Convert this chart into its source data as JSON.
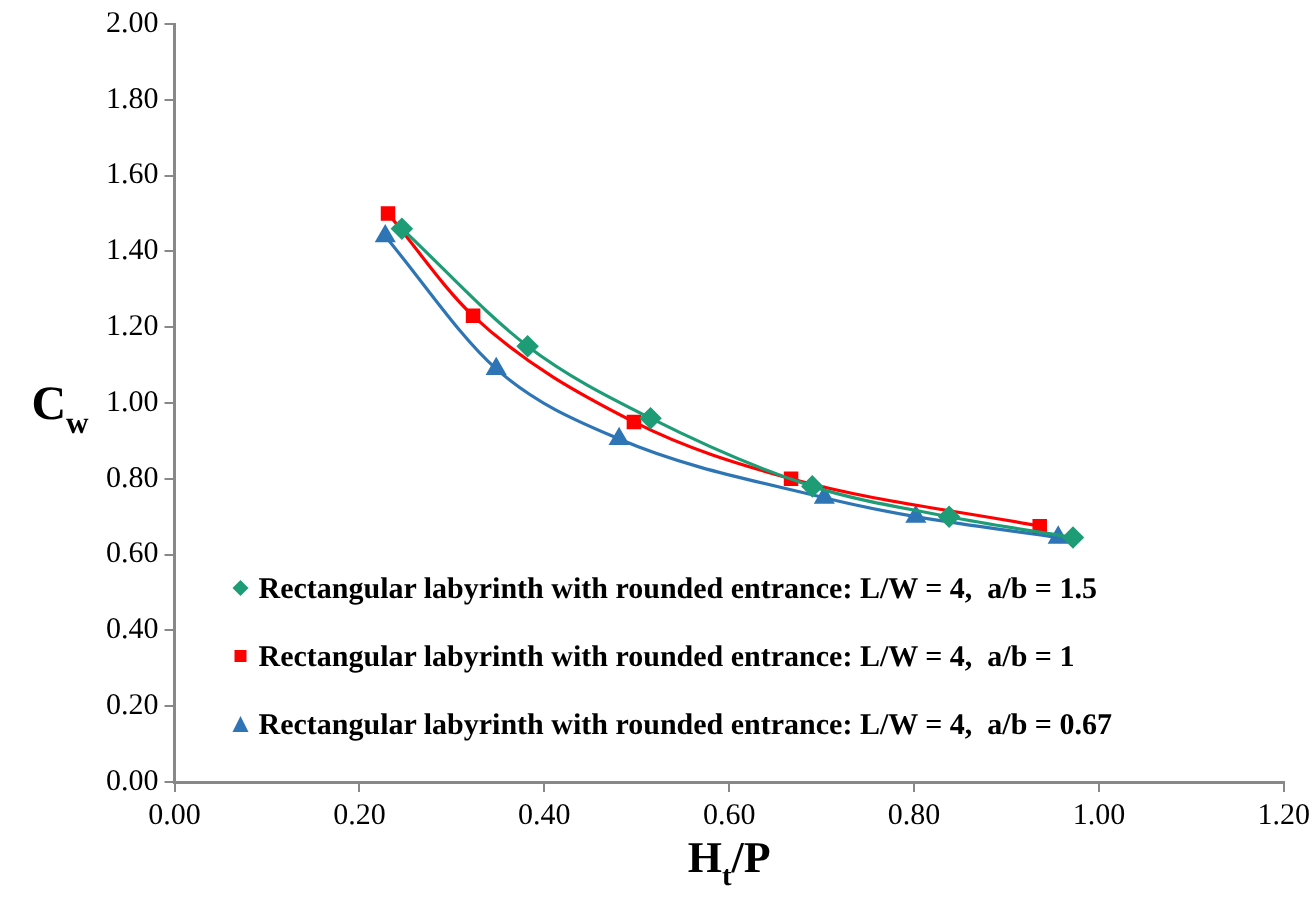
{
  "chart_data": {
    "type": "line",
    "xlabel": "H$_{t}$/P",
    "ylabel": "C$_{w}$",
    "xlim": [
      0,
      1.2
    ],
    "ylim": [
      0,
      2
    ],
    "xticks": [
      {
        "value": 0,
        "label": "0.00"
      },
      {
        "value": 0.2,
        "label": "0.20"
      },
      {
        "value": 0.4,
        "label": "0.40"
      },
      {
        "value": 0.6,
        "label": "0.60"
      },
      {
        "value": 0.8,
        "label": "0.80"
      },
      {
        "value": 1,
        "label": "1.00"
      },
      {
        "value": 1.2,
        "label": "1.20"
      }
    ],
    "yticks": [
      {
        "value": 0,
        "label": "0.00"
      },
      {
        "value": 0.2,
        "label": "0.20"
      },
      {
        "value": 0.4,
        "label": "0.40"
      },
      {
        "value": 0.6,
        "label": "0.60"
      },
      {
        "value": 0.8,
        "label": "0.80"
      },
      {
        "value": 1,
        "label": "1.00"
      },
      {
        "value": 1.2,
        "label": "1.20"
      },
      {
        "value": 1.4,
        "label": "1.40"
      },
      {
        "value": 1.6,
        "label": "1.60"
      },
      {
        "value": 1.8,
        "label": "1.80"
      },
      {
        "value": 2,
        "label": "2.00"
      }
    ],
    "grid": false,
    "legend": "bottom left",
    "line_style": "solid",
    "series": [
      {
        "name": "Rectangular labyrinth with rounded entrance: L/W = 4,  a/b = 1.5",
        "color": "#1e9c76",
        "marker": "diamond",
        "x": [
          0.246,
          0.382,
          0.515,
          0.69,
          0.838,
          0.972
        ],
        "values": [
          1.46,
          1.15,
          0.96,
          0.78,
          0.7,
          0.645
        ]
      },
      {
        "name": "Rectangular labyrinth with rounded entrance: L/W = 4,  a/b = 1",
        "color": "#ff0000",
        "marker": "square",
        "x": [
          0.231,
          0.323,
          0.497,
          0.667,
          0.936
        ],
        "values": [
          1.5,
          1.23,
          0.95,
          0.8,
          0.675
        ]
      },
      {
        "name": "Rectangular labyrinth with rounded entrance: L/W = 4,  a/b = 0.67",
        "color": "#2e75b6",
        "marker": "triangle",
        "x": [
          0.228,
          0.348,
          0.481,
          0.703,
          0.802,
          0.956
        ],
        "values": [
          1.44,
          1.09,
          0.905,
          0.75,
          0.7,
          0.645
        ]
      }
    ]
  }
}
